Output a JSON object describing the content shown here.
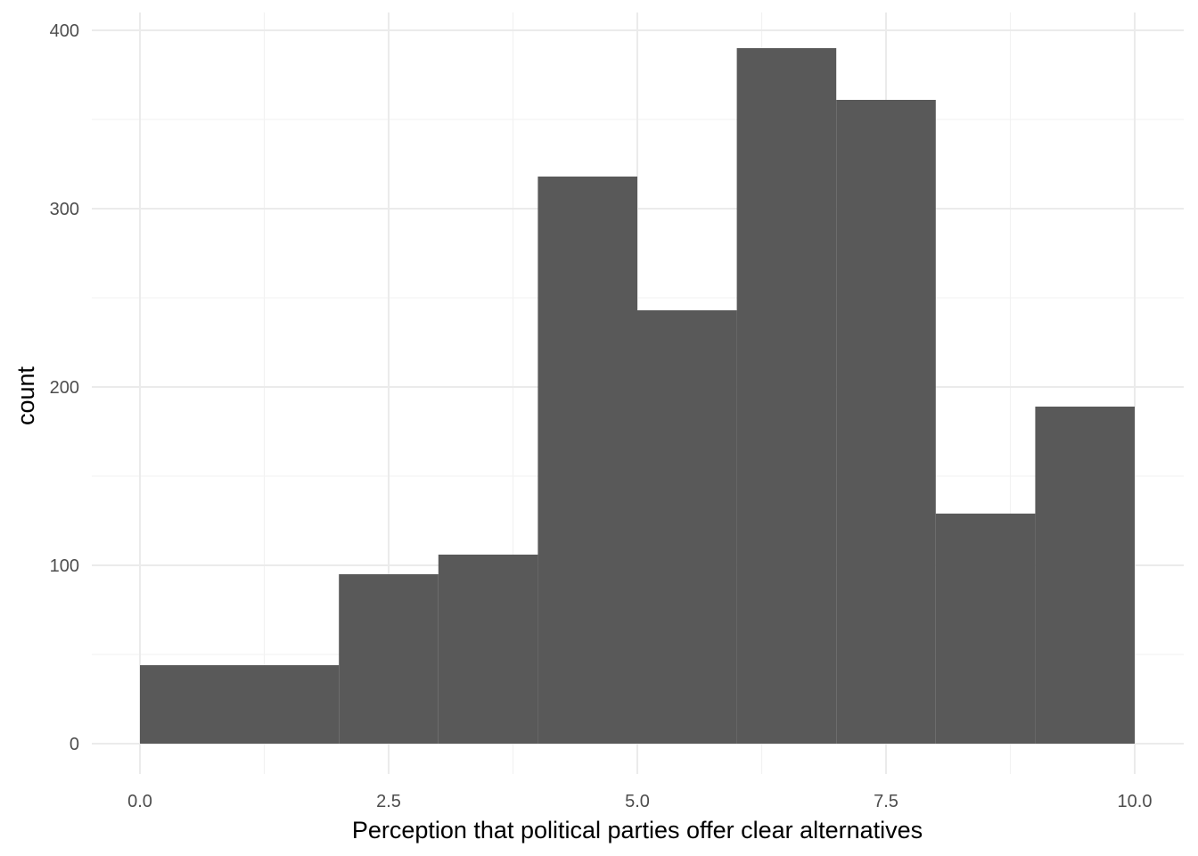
{
  "chart_data": {
    "type": "bar",
    "subtype": "histogram",
    "xlabel": "Perception that political parties offer clear alternatives",
    "ylabel": "count",
    "xlim": [
      0,
      10
    ],
    "ylim": [
      0,
      400
    ],
    "x_ticks": [
      {
        "value": 0,
        "label": "0.0"
      },
      {
        "value": 2.5,
        "label": "2.5"
      },
      {
        "value": 5,
        "label": "5.0"
      },
      {
        "value": 7.5,
        "label": "7.5"
      },
      {
        "value": 10,
        "label": "10.0"
      }
    ],
    "y_ticks": [
      {
        "value": 0,
        "label": "0"
      },
      {
        "value": 100,
        "label": "100"
      },
      {
        "value": 200,
        "label": "200"
      },
      {
        "value": 300,
        "label": "300"
      },
      {
        "value": 400,
        "label": "400"
      }
    ],
    "bins": [
      {
        "x0": 0,
        "x1": 2,
        "count": 44
      },
      {
        "x0": 2,
        "x1": 3,
        "count": 95
      },
      {
        "x0": 3,
        "x1": 4,
        "count": 106
      },
      {
        "x0": 4,
        "x1": 5,
        "count": 318
      },
      {
        "x0": 5,
        "x1": 6,
        "count": 243
      },
      {
        "x0": 6,
        "x1": 7,
        "count": 390
      },
      {
        "x0": 7,
        "x1": 8,
        "count": 361
      },
      {
        "x0": 8,
        "x1": 9,
        "count": 129
      },
      {
        "x0": 9,
        "x1": 10,
        "count": 189
      }
    ],
    "bar_color": "#595959",
    "grid": true,
    "grid_major_color": "#ebebeb",
    "grid_minor_color": "#f2f2f2",
    "legend": "none"
  }
}
